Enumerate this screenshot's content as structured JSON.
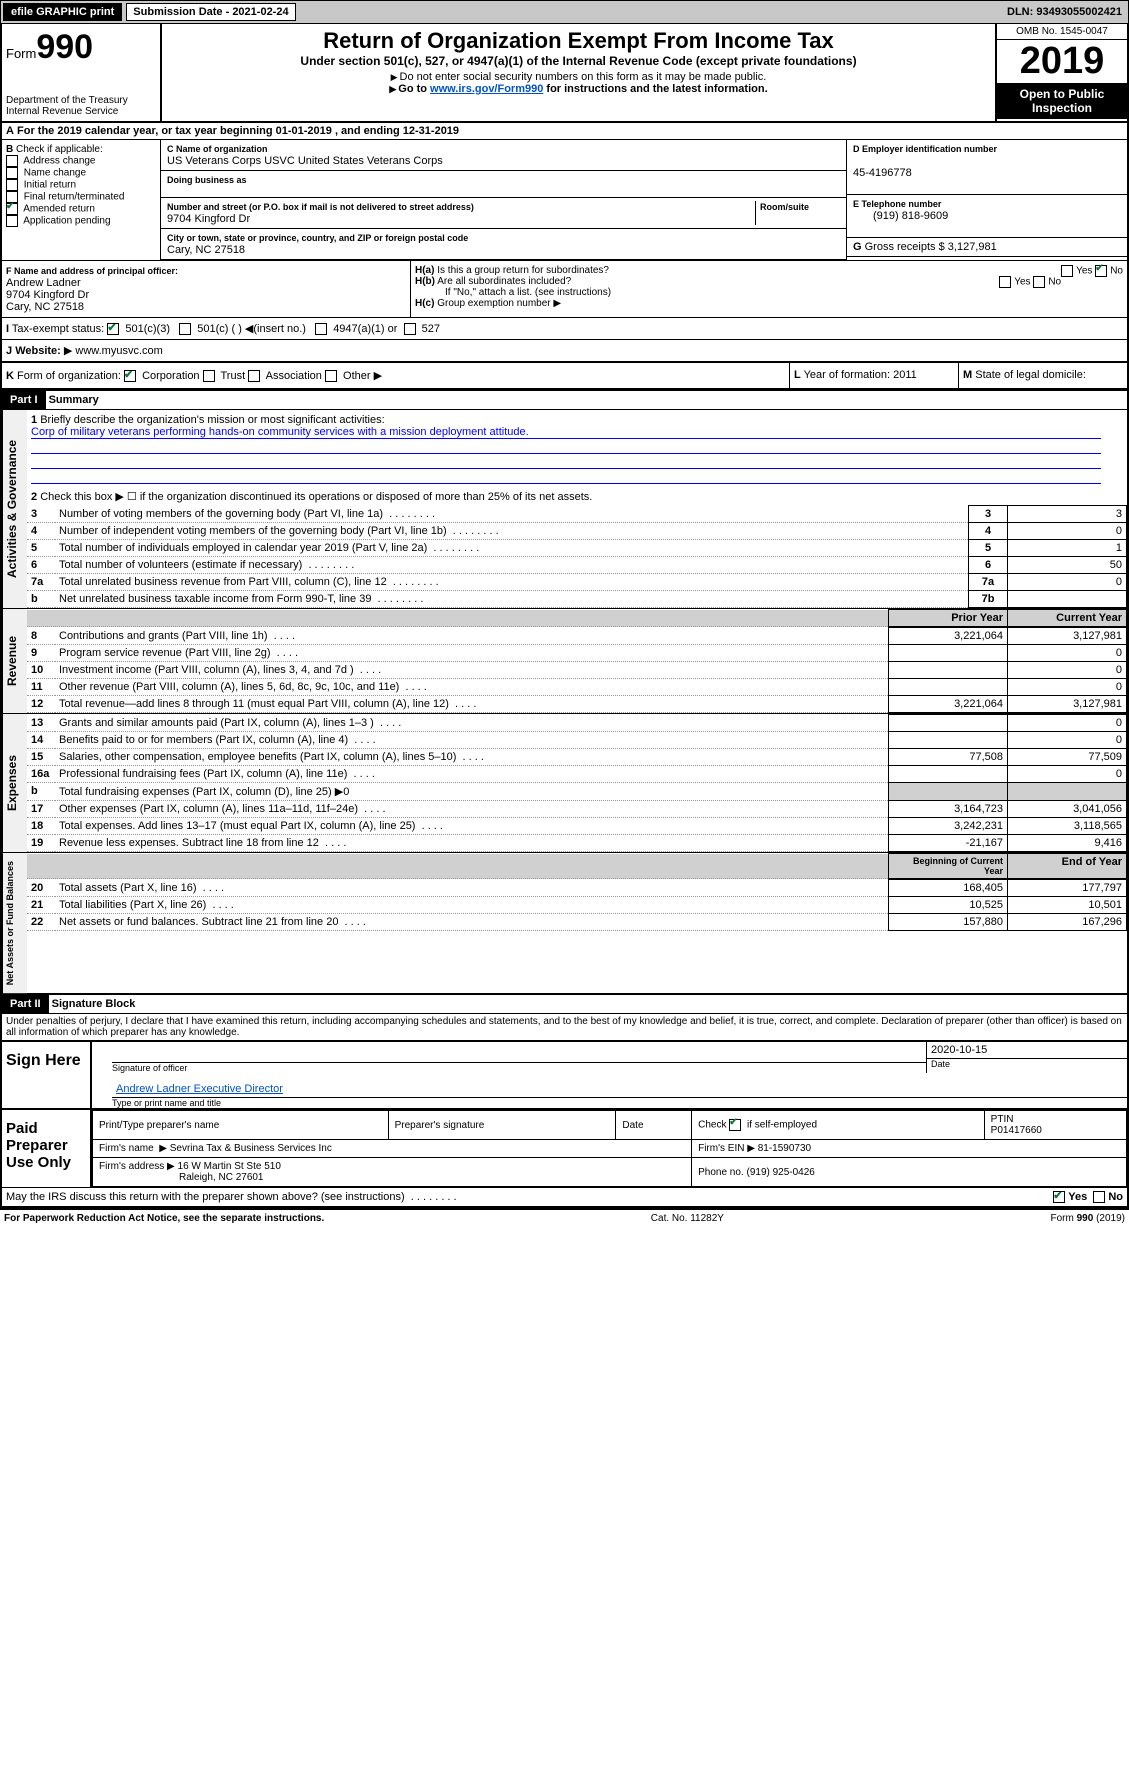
{
  "topbar": {
    "efile": "efile GRAPHIC print",
    "sub_label": "Submission Date - 2021-02-24",
    "dln": "DLN: 93493055002421"
  },
  "header": {
    "form_prefix": "Form",
    "form_num": "990",
    "dept": "Department of the Treasury",
    "irs": "Internal Revenue Service",
    "title": "Return of Organization Exempt From Income Tax",
    "sub1": "Under section 501(c), 527, or 4947(a)(1) of the Internal Revenue Code (except private foundations)",
    "sub2": "Do not enter social security numbers on this form as it may be made public.",
    "sub3_pre": "Go to ",
    "sub3_link": "www.irs.gov/Form990",
    "sub3_post": " for instructions and the latest information.",
    "omb": "OMB No. 1545-0047",
    "year": "2019",
    "public": "Open to Public Inspection"
  },
  "periodA": "For the 2019 calendar year, or tax year beginning 01-01-2019    , and ending 12-31-2019",
  "boxB": {
    "label": "Check if applicable:",
    "items": [
      "Address change",
      "Name change",
      "Initial return",
      "Final return/terminated",
      "Amended return",
      "Application pending"
    ],
    "checked": [
      false,
      false,
      false,
      false,
      true,
      false
    ]
  },
  "boxC": {
    "name_label": "Name of organization",
    "name": "US Veterans Corps USVC United States Veterans Corps",
    "dba_label": "Doing business as",
    "dba": "",
    "addr_label": "Number and street (or P.O. box if mail is not delivered to street address)",
    "room_label": "Room/suite",
    "addr": "9704 Kingford Dr",
    "city_label": "City or town, state or province, country, and ZIP or foreign postal code",
    "city": "Cary, NC  27518"
  },
  "boxD": {
    "label": "Employer identification number",
    "val": "45-4196778"
  },
  "boxE": {
    "label": "Telephone number",
    "val": "(919) 818-9609"
  },
  "boxG": {
    "label": "Gross receipts $",
    "val": "3,127,981"
  },
  "boxF": {
    "label": "Name and address of principal officer:",
    "name": "Andrew Ladner",
    "addr1": "9704 Kingford Dr",
    "addr2": "Cary, NC  27518"
  },
  "boxH": {
    "a": "Is this a group return for subordinates?",
    "b": "Are all subordinates included?",
    "note": "If \"No,\" attach a list. (see instructions)",
    "c": "Group exemption number"
  },
  "taxexempt": {
    "label": "Tax-exempt status:",
    "opts": [
      "501(c)(3)",
      "501(c) (   )  ◀(insert no.)",
      "4947(a)(1) or",
      "527"
    ]
  },
  "website": {
    "label": "Website:",
    "val": "www.myusvc.com"
  },
  "boxK": {
    "label": "Form of organization:",
    "opts": [
      "Corporation",
      "Trust",
      "Association",
      "Other"
    ]
  },
  "boxL": {
    "label": "Year of formation:",
    "val": "2011"
  },
  "boxM": {
    "label": "State of legal domicile:",
    "val": ""
  },
  "part1": {
    "title": "Part I",
    "sub": "Summary"
  },
  "govern": {
    "title": "Activities & Governance",
    "q1": "Briefly describe the organization's mission or most significant activities:",
    "a1": "Corp of military veterans performing hands-on community services with a mission deployment attitude.",
    "q2": "Check this box ▶ ☐  if the organization discontinued its operations or disposed of more than 25% of its net assets.",
    "rows": [
      {
        "n": "3",
        "t": "Number of voting members of the governing body (Part VI, line 1a)",
        "k": "3",
        "v": "3"
      },
      {
        "n": "4",
        "t": "Number of independent voting members of the governing body (Part VI, line 1b)",
        "k": "4",
        "v": "0"
      },
      {
        "n": "5",
        "t": "Total number of individuals employed in calendar year 2019 (Part V, line 2a)",
        "k": "5",
        "v": "1"
      },
      {
        "n": "6",
        "t": "Total number of volunteers (estimate if necessary)",
        "k": "6",
        "v": "50"
      },
      {
        "n": "7a",
        "t": "Total unrelated business revenue from Part VIII, column (C), line 12",
        "k": "7a",
        "v": "0"
      },
      {
        "n": "b",
        "t": "Net unrelated business taxable income from Form 990-T, line 39",
        "k": "7b",
        "v": ""
      }
    ]
  },
  "revhdr": {
    "prior": "Prior Year",
    "current": "Current Year"
  },
  "revenue": {
    "title": "Revenue",
    "rows": [
      {
        "n": "8",
        "t": "Contributions and grants (Part VIII, line 1h)",
        "p": "3,221,064",
        "c": "3,127,981"
      },
      {
        "n": "9",
        "t": "Program service revenue (Part VIII, line 2g)",
        "p": "",
        "c": "0"
      },
      {
        "n": "10",
        "t": "Investment income (Part VIII, column (A), lines 3, 4, and 7d )",
        "p": "",
        "c": "0"
      },
      {
        "n": "11",
        "t": "Other revenue (Part VIII, column (A), lines 5, 6d, 8c, 9c, 10c, and 11e)",
        "p": "",
        "c": "0"
      },
      {
        "n": "12",
        "t": "Total revenue—add lines 8 through 11 (must equal Part VIII, column (A), line 12)",
        "p": "3,221,064",
        "c": "3,127,981"
      }
    ]
  },
  "expenses": {
    "title": "Expenses",
    "rows": [
      {
        "n": "13",
        "t": "Grants and similar amounts paid (Part IX, column (A), lines 1–3 )",
        "p": "",
        "c": "0"
      },
      {
        "n": "14",
        "t": "Benefits paid to or for members (Part IX, column (A), line 4)",
        "p": "",
        "c": "0"
      },
      {
        "n": "15",
        "t": "Salaries, other compensation, employee benefits (Part IX, column (A), lines 5–10)",
        "p": "77,508",
        "c": "77,509"
      },
      {
        "n": "16a",
        "t": "Professional fundraising fees (Part IX, column (A), line 11e)",
        "p": "",
        "c": "0"
      },
      {
        "n": "b",
        "t": "Total fundraising expenses (Part IX, column (D), line 25) ▶0",
        "p": "—",
        "c": "—"
      },
      {
        "n": "17",
        "t": "Other expenses (Part IX, column (A), lines 11a–11d, 11f–24e)",
        "p": "3,164,723",
        "c": "3,041,056"
      },
      {
        "n": "18",
        "t": "Total expenses. Add lines 13–17 (must equal Part IX, column (A), line 25)",
        "p": "3,242,231",
        "c": "3,118,565"
      },
      {
        "n": "19",
        "t": "Revenue less expenses. Subtract line 18 from line 12",
        "p": "-21,167",
        "c": "9,416"
      }
    ]
  },
  "nethdr": {
    "prior": "Beginning of Current Year",
    "current": "End of Year"
  },
  "net": {
    "title": "Net Assets or Fund Balances",
    "rows": [
      {
        "n": "20",
        "t": "Total assets (Part X, line 16)",
        "p": "168,405",
        "c": "177,797"
      },
      {
        "n": "21",
        "t": "Total liabilities (Part X, line 26)",
        "p": "10,525",
        "c": "10,501"
      },
      {
        "n": "22",
        "t": "Net assets or fund balances. Subtract line 21 from line 20",
        "p": "157,880",
        "c": "167,296"
      }
    ]
  },
  "part2": {
    "title": "Part II",
    "sub": "Signature Block",
    "decl": "Under penalties of perjury, I declare that I have examined this return, including accompanying schedules and statements, and to the best of my knowledge and belief, it is true, correct, and complete. Declaration of preparer (other than officer) is based on all information of which preparer has any knowledge."
  },
  "sign": {
    "label": "Sign Here",
    "sig_label": "Signature of officer",
    "date": "2020-10-15",
    "date_label": "Date",
    "name": "Andrew Ladner  Executive Director",
    "name_label": "Type or print name and title"
  },
  "paid": {
    "label": "Paid Preparer Use Only",
    "c1": "Print/Type preparer's name",
    "c2": "Preparer's signature",
    "c3": "Date",
    "c4_label": "Check",
    "c4_val": "if self-employed",
    "c5_label": "PTIN",
    "c5_val": "P01417660",
    "firm_label": "Firm's name",
    "firm": "Sevrina Tax & Business Services Inc",
    "ein_label": "Firm's EIN ▶",
    "ein": "81-1590730",
    "addr_label": "Firm's address ▶",
    "addr1": "16 W Martin St Ste 510",
    "addr2": "Raleigh, NC  27601",
    "phone_label": "Phone no.",
    "phone": "(919) 925-0426"
  },
  "discuss": "May the IRS discuss this return with the preparer shown above? (see instructions)",
  "footer": {
    "pra": "For Paperwork Reduction Act Notice, see the separate instructions.",
    "cat": "Cat. No. 11282Y",
    "form": "Form 990 (2019)"
  }
}
